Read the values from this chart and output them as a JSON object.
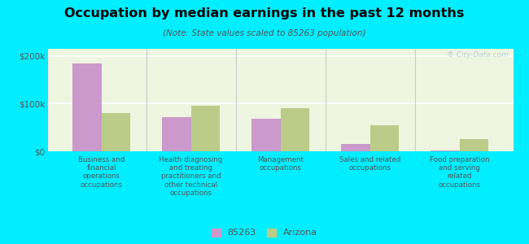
{
  "title": "Occupation by median earnings in the past 12 months",
  "subtitle": "(Note: State values scaled to 85263 population)",
  "categories": [
    "Business and\nfinancial\noperations\noccupations",
    "Health diagnosing\nand treating\npractitioners and\nother technical\noccupations",
    "Management\noccupations",
    "Sales and related\noccupations",
    "Food preparation\nand serving\nrelated\noccupations"
  ],
  "values_85263": [
    185000,
    72000,
    68000,
    15000,
    2000
  ],
  "values_arizona": [
    80000,
    95000,
    90000,
    55000,
    25000
  ],
  "color_85263": "#cc99cc",
  "color_arizona": "#bbcc88",
  "background_color": "#00eeff",
  "plot_bg": "#eef5e0",
  "ylabel_ticks": [
    "$0",
    "$100k",
    "$200k"
  ],
  "ytick_values": [
    0,
    100000,
    200000
  ],
  "ylim": [
    0,
    215000
  ],
  "legend_label_85263": "85263",
  "legend_label_arizona": "Arizona",
  "watermark": "® City-Data.com"
}
